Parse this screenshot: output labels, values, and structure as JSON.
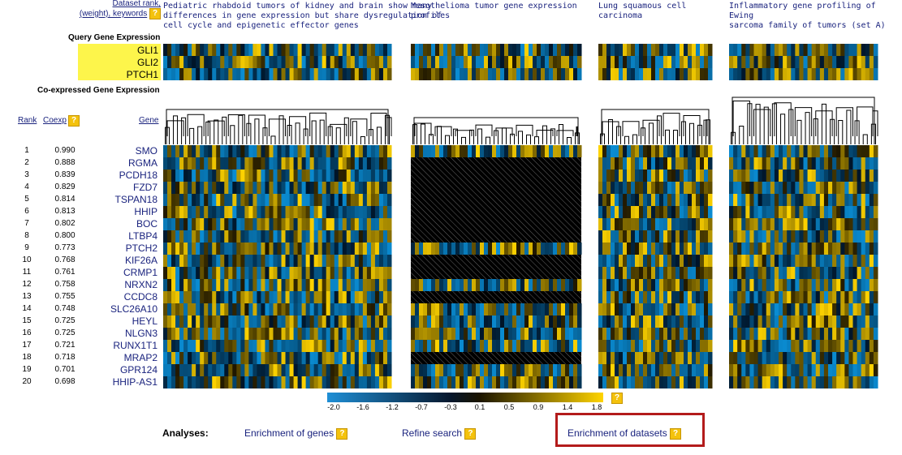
{
  "header": {
    "dataset_rank_label": "Dataset rank,",
    "weight_keywords_label": "(weight), keywords",
    "help": "?"
  },
  "datasets": [
    {
      "title_lines": [
        "Pediatric rhabdoid tumors of kidney and brain show many",
        "differences in gene expression but share dysregulation of",
        "cell cycle and epigenetic effector genes"
      ]
    },
    {
      "title_lines": [
        "Mesothelioma tumor gene expression",
        "profiles"
      ]
    },
    {
      "title_lines": [
        "Lung squamous cell",
        "carcinoma"
      ]
    },
    {
      "title_lines": [
        "Inflammatory gene profiling of Ewing",
        "sarcoma family of tumors (set A)"
      ]
    }
  ],
  "query": {
    "label": "Query Gene Expression",
    "genes": [
      "GLI1",
      "GLI2",
      "PTCH1"
    ]
  },
  "coexpressed": {
    "label": "Co-expressed Gene Expression",
    "col_rank": "Rank",
    "col_coexp": "Coexp",
    "col_gene": "Gene",
    "rows": [
      {
        "rank": "1",
        "coexp": "0.990",
        "gene": "SMO"
      },
      {
        "rank": "2",
        "coexp": "0.888",
        "gene": "RGMA"
      },
      {
        "rank": "3",
        "coexp": "0.839",
        "gene": "PCDH18"
      },
      {
        "rank": "4",
        "coexp": "0.829",
        "gene": "FZD7"
      },
      {
        "rank": "5",
        "coexp": "0.814",
        "gene": "TSPAN18"
      },
      {
        "rank": "6",
        "coexp": "0.813",
        "gene": "HHIP"
      },
      {
        "rank": "7",
        "coexp": "0.802",
        "gene": "BOC"
      },
      {
        "rank": "8",
        "coexp": "0.800",
        "gene": "LTBP4"
      },
      {
        "rank": "9",
        "coexp": "0.773",
        "gene": "PTCH2"
      },
      {
        "rank": "10",
        "coexp": "0.768",
        "gene": "KIF26A"
      },
      {
        "rank": "11",
        "coexp": "0.761",
        "gene": "CRMP1"
      },
      {
        "rank": "12",
        "coexp": "0.758",
        "gene": "NRXN2"
      },
      {
        "rank": "13",
        "coexp": "0.755",
        "gene": "CCDC8"
      },
      {
        "rank": "14",
        "coexp": "0.748",
        "gene": "SLC26A10"
      },
      {
        "rank": "15",
        "coexp": "0.725",
        "gene": "HEYL"
      },
      {
        "rank": "16",
        "coexp": "0.725",
        "gene": "NLGN3"
      },
      {
        "rank": "17",
        "coexp": "0.721",
        "gene": "RUNX1T1"
      },
      {
        "rank": "18",
        "coexp": "0.718",
        "gene": "MRAP2"
      },
      {
        "rank": "19",
        "coexp": "0.701",
        "gene": "GPR124"
      },
      {
        "rank": "20",
        "coexp": "0.698",
        "gene": "HHIP-AS1"
      }
    ]
  },
  "legend": {
    "ticks": [
      "-2.0",
      "-1.6",
      "-1.2",
      "-0.7",
      "-0.3",
      "0.1",
      "0.5",
      "0.9",
      "1.4",
      "1.8"
    ]
  },
  "analyses": {
    "label": "Analyses:",
    "links": [
      "Enrichment of genes",
      "Refine search",
      "Enrichment of datasets"
    ]
  },
  "colors": {
    "negative": "#1f8fd6",
    "neutral": "#000000",
    "positive": "#ffd400",
    "highlight": "#fdf54b",
    "link": "#1a237e",
    "callout": "#b31b1b"
  }
}
